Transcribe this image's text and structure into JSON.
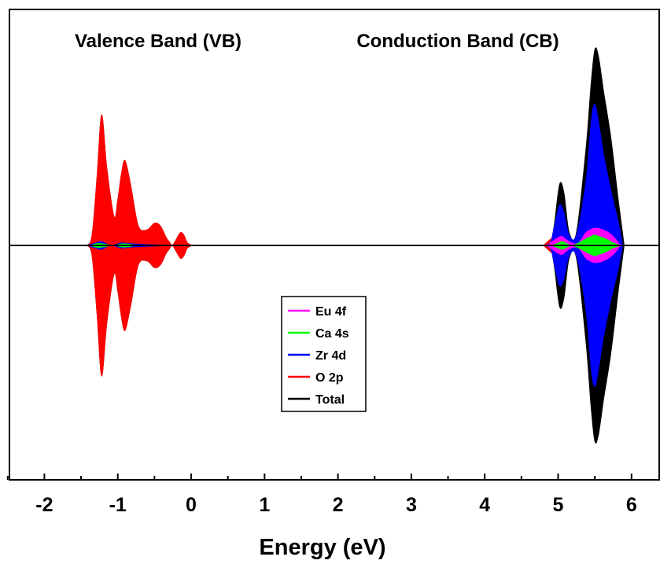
{
  "chart_data": {
    "type": "area",
    "xlabel": "Energy (eV)",
    "xlim": [
      -2.5,
      6.5
    ],
    "xticks": [
      -2,
      -1,
      0,
      1,
      2,
      3,
      4,
      5,
      6
    ],
    "y_axis_ticks_shown": false,
    "grid": false,
    "annotations": [
      "Valence Band (VB)",
      "Conduction Band (CB)"
    ],
    "legend": {
      "placement": "center",
      "entries": [
        {
          "name": "Eu 4f",
          "color": "#ff00ff"
        },
        {
          "name": "Ca 4s",
          "color": "#00ff00"
        },
        {
          "name": "Zr 4d",
          "color": "#0000ff"
        },
        {
          "name": "O 2p",
          "color": "#ff0000"
        },
        {
          "name": "Total",
          "color": "#000000"
        }
      ]
    },
    "series": [
      {
        "name": "Total",
        "color": "#000000",
        "x": [
          -1.42,
          -1.35,
          -1.28,
          -1.22,
          -1.15,
          -1.05,
          -1.0,
          -0.95,
          -0.9,
          -0.82,
          -0.72,
          -0.6,
          -0.5,
          -0.42,
          -0.34,
          -0.3,
          -0.26,
          -0.22,
          -0.18,
          -0.14,
          -0.1,
          -0.05,
          0.02,
          4.82,
          4.9,
          4.95,
          5.02,
          5.08,
          5.15,
          5.25,
          5.38,
          5.45,
          5.5,
          5.55,
          5.62,
          5.72,
          5.82,
          5.9
        ],
        "y": [
          0,
          0.08,
          0.55,
          1.0,
          0.6,
          0.22,
          0.35,
          0.55,
          0.65,
          0.45,
          0.15,
          0.12,
          0.17,
          0.15,
          0.06,
          0.03,
          0,
          0.03,
          0.07,
          0.1,
          0.08,
          0.02,
          0,
          0,
          0.03,
          0.17,
          0.47,
          0.4,
          0.1,
          0.1,
          0.75,
          1.25,
          1.5,
          1.45,
          1.18,
          0.82,
          0.35,
          0
        ]
      },
      {
        "name": "O 2p",
        "color": "#ff0000",
        "x": [
          -1.42,
          -1.35,
          -1.28,
          -1.22,
          -1.15,
          -1.05,
          -1.0,
          -0.95,
          -0.9,
          -0.82,
          -0.72,
          -0.6,
          -0.5,
          -0.42,
          -0.34,
          -0.3,
          -0.26,
          -0.22,
          -0.18,
          -0.14,
          -0.1,
          -0.05,
          0.02,
          4.8,
          4.9,
          5.0,
          5.05,
          5.1,
          5.2,
          5.28,
          5.35,
          5.45,
          5.55,
          5.65,
          5.75,
          5.85
        ],
        "y": [
          0,
          0.08,
          0.55,
          1.0,
          0.6,
          0.22,
          0.35,
          0.55,
          0.65,
          0.45,
          0.15,
          0.12,
          0.17,
          0.15,
          0.06,
          0.03,
          0,
          0.03,
          0.07,
          0.1,
          0.08,
          0.02,
          0,
          0,
          0.05,
          0.08,
          0.1,
          0.07,
          0.03,
          0.12,
          0.2,
          0.24,
          0.22,
          0.16,
          0.1,
          0
        ]
      },
      {
        "name": "Zr 4d",
        "color": "#0000ff",
        "x": [
          -1.42,
          -1.3,
          -1.22,
          -1.1,
          -0.95,
          -0.85,
          -0.5,
          0.0,
          4.82,
          4.9,
          4.95,
          5.02,
          5.08,
          5.15,
          5.25,
          5.38,
          5.45,
          5.5,
          5.55,
          5.62,
          5.72,
          5.82,
          5.88
        ],
        "y": [
          0,
          0.02,
          0.03,
          0,
          0.02,
          0.015,
          0.005,
          0,
          0,
          0.03,
          0.15,
          0.31,
          0.25,
          0.08,
          0.08,
          0.5,
          0.95,
          1.08,
          0.95,
          0.7,
          0.42,
          0.18,
          0
        ]
      },
      {
        "name": "Eu 4f",
        "color": "#ff00ff",
        "x": [
          4.85,
          4.92,
          5.0,
          5.05,
          5.1,
          5.18,
          5.28,
          5.38,
          5.48,
          5.55,
          5.65,
          5.75,
          5.85
        ],
        "y": [
          0,
          0.03,
          0.06,
          0.07,
          0.05,
          0.02,
          0.02,
          0.1,
          0.13,
          0.13,
          0.11,
          0.07,
          0
        ]
      },
      {
        "name": "Ca 4s",
        "color": "#00ff00",
        "x": [
          -1.38,
          -1.28,
          -1.18,
          -1.05,
          -0.95,
          -0.85,
          -0.75,
          4.92,
          5.0,
          5.05,
          5.1,
          5.18,
          5.28,
          5.38,
          5.45,
          5.5,
          5.55,
          5.65,
          5.75,
          5.85
        ],
        "y": [
          0,
          0.015,
          0.01,
          0,
          0.012,
          0.01,
          0,
          0,
          0.02,
          0.03,
          0.02,
          0,
          0.02,
          0.05,
          0.07,
          0.08,
          0.07,
          0.05,
          0.02,
          0
        ]
      }
    ]
  }
}
